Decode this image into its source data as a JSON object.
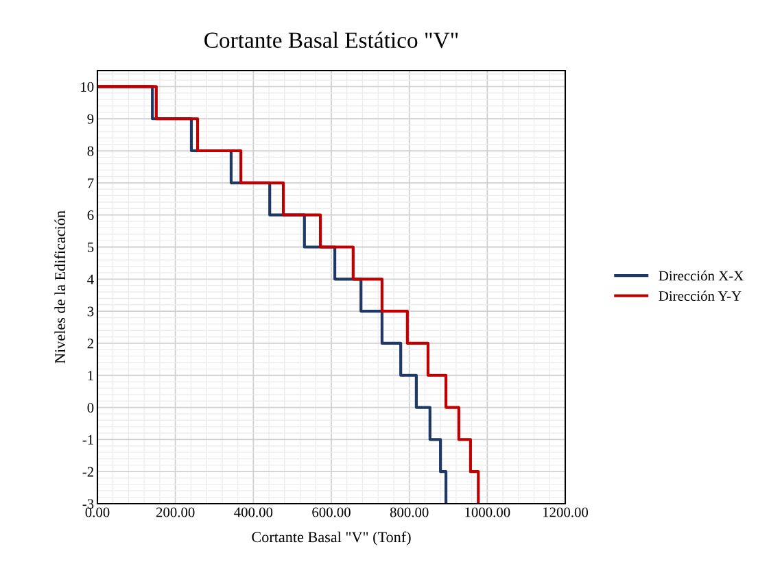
{
  "chart_data": {
    "type": "step",
    "title": "Cortante Basal Estático \"V\"",
    "xlabel": "Cortante Basal \"V\" (Tonf)",
    "ylabel": "Niveles de la Edificación",
    "series": [
      {
        "name": "Dirección X-X",
        "color": "#203864",
        "x": [
          0,
          141,
          241,
          343,
          442,
          531,
          609,
          676,
          730,
          778,
          818,
          853,
          880,
          894
        ],
        "values": [
          10,
          9,
          8,
          7,
          6,
          5,
          4,
          3,
          2,
          1,
          0,
          -1,
          -2,
          -3
        ]
      },
      {
        "name": "Dirección Y-Y",
        "color": "#c00000",
        "x": [
          0,
          151,
          257,
          368,
          477,
          572,
          656,
          730,
          795,
          848,
          894,
          927,
          957,
          977
        ],
        "values": [
          10,
          9,
          8,
          7,
          6,
          5,
          4,
          3,
          2,
          1,
          0,
          -1,
          -2,
          -3
        ]
      }
    ],
    "xlim": [
      0,
      1200
    ],
    "xticks": [
      {
        "value": 0,
        "label": "0.00"
      },
      {
        "value": 200,
        "label": "200.00"
      },
      {
        "value": 400,
        "label": "400.00"
      },
      {
        "value": 600,
        "label": "600.00"
      },
      {
        "value": 800,
        "label": "800.00"
      },
      {
        "value": 1000,
        "label": "1000.00"
      },
      {
        "value": 1200,
        "label": "1200.00"
      }
    ],
    "ylim": [
      -3,
      10.5
    ],
    "yticks": [
      -3,
      -2,
      -1,
      0,
      1,
      2,
      3,
      4,
      5,
      6,
      7,
      8,
      9,
      10
    ],
    "grid": true,
    "legend": "right",
    "line_style": "solid"
  }
}
